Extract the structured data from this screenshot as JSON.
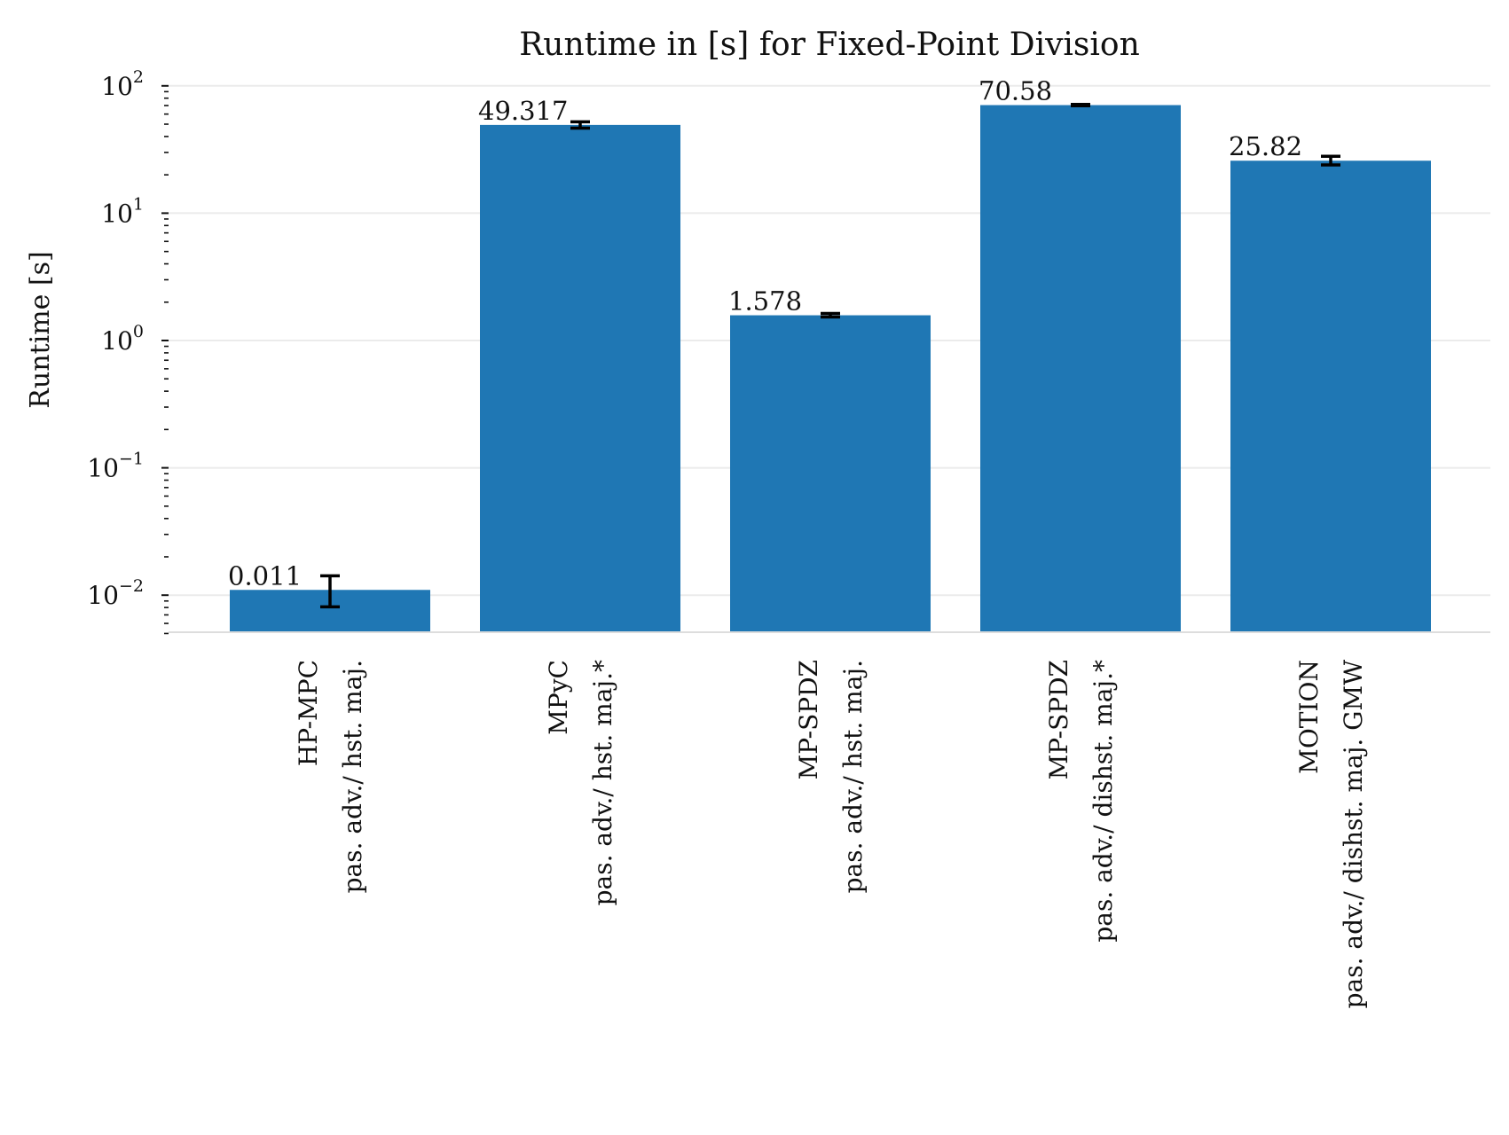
{
  "chart_data": {
    "type": "bar",
    "title": "Runtime in [s] for Fixed-Point Division",
    "xlabel": "",
    "ylabel": "Runtime [s]",
    "yscale": "log",
    "ylim": [
      0.005,
      130
    ],
    "grid": "horizontal",
    "legend": "none",
    "bar_color": "#1f77b4",
    "yticks": [
      {
        "value": 0.01,
        "base": "10",
        "exp": "−2"
      },
      {
        "value": 0.1,
        "base": "10",
        "exp": "−1"
      },
      {
        "value": 1,
        "base": "10",
        "exp": "0"
      },
      {
        "value": 10,
        "base": "10",
        "exp": "1"
      },
      {
        "value": 100,
        "base": "10",
        "exp": "2"
      }
    ],
    "categories": [
      [
        "HP-MPC",
        "pas. adv./ hst. maj."
      ],
      [
        "MPyC",
        "pas. adv./ hst. maj.*"
      ],
      [
        "MP-SPDZ",
        "pas. adv./ hst. maj."
      ],
      [
        "MP-SPDZ",
        "pas. adv./ dishst. maj.*"
      ],
      [
        "MOTION",
        "pas. adv./ dishst. maj. GMW"
      ]
    ],
    "values": [
      0.011,
      49.317,
      1.578,
      70.58,
      25.82
    ],
    "value_labels": [
      "0.011",
      "49.317",
      "1.578",
      "70.58",
      "25.82"
    ],
    "error_low": [
      0.0081,
      46.5,
      1.53,
      69.8,
      23.9
    ],
    "error_high": [
      0.0142,
      52.2,
      1.63,
      71.4,
      28.0
    ]
  }
}
